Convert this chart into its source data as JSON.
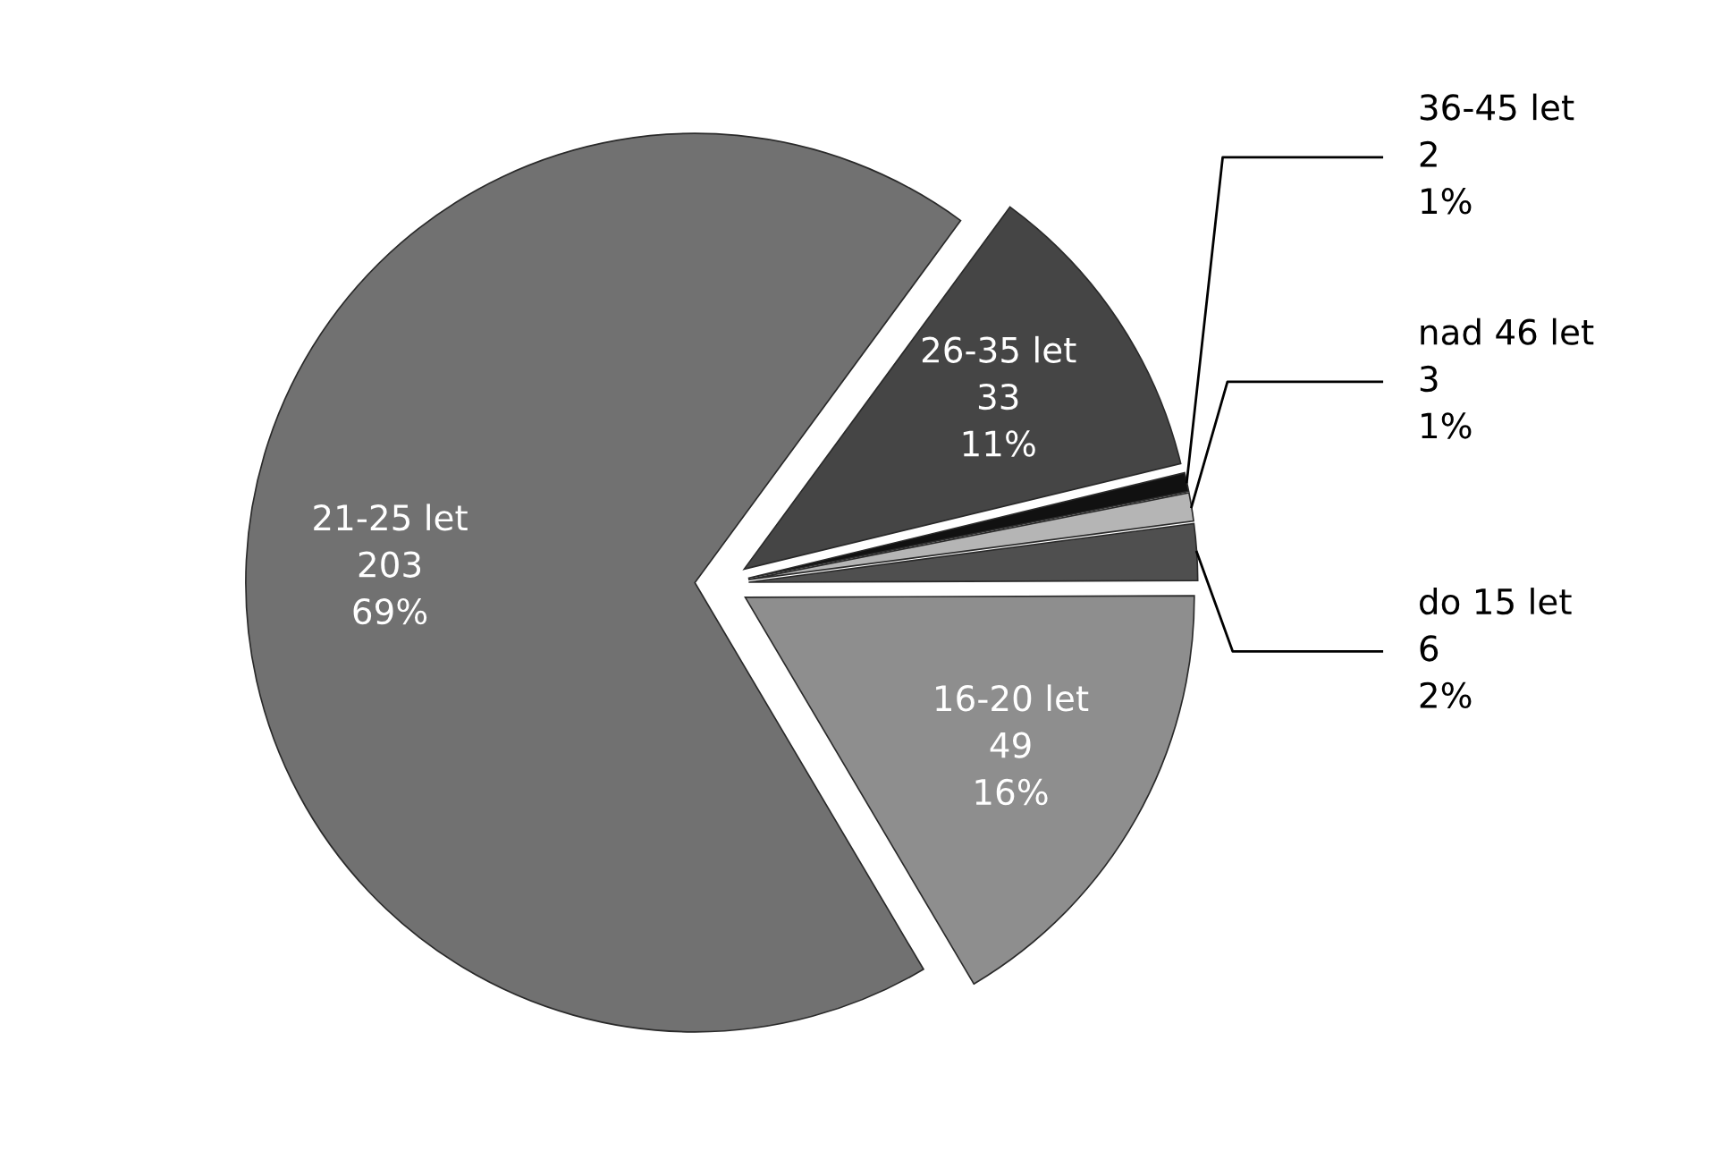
{
  "chart_data": {
    "type": "pie",
    "categories": [
      "do 15 let",
      "16-20 let",
      "21-25 let",
      "26-35 let",
      "36-45 let",
      "nad 46 let"
    ],
    "values": [
      6,
      49,
      203,
      33,
      2,
      3
    ],
    "value_labels": [
      "6\n2%",
      "49\n16%",
      "203\n69%",
      "33\n11%",
      "2\n1%",
      "3\n1%"
    ],
    "colors": [
      "#4f4f4f",
      "#8e8e8e",
      "#717171",
      "#454545",
      "#111111",
      "#b5b5b5"
    ],
    "legend": false
  }
}
